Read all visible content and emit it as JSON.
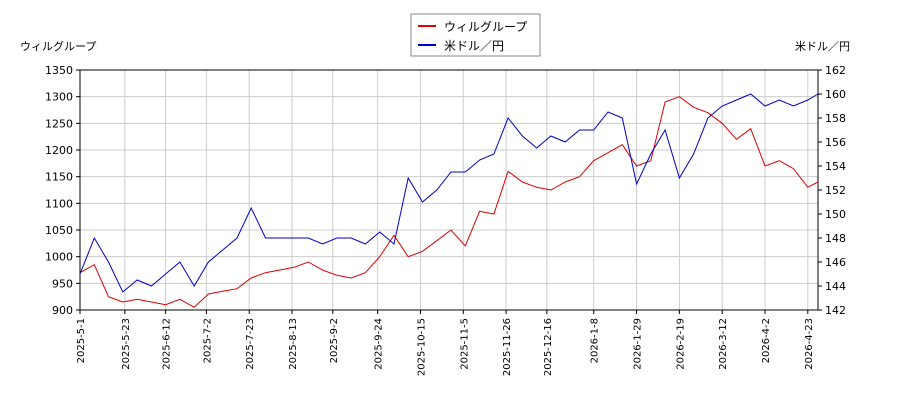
{
  "chart_data": {
    "type": "line",
    "ylabel": "ウィルグループ",
    "y2label": "米ドル／円",
    "x": [
      "2025-5-1",
      "2025-5-8",
      "2025-5-15",
      "2025-5-22",
      "2025-5-29",
      "2025-6-5",
      "2025-6-12",
      "2025-6-19",
      "2025-6-26",
      "2025-7-3",
      "2025-7-10",
      "2025-7-17",
      "2025-7-24",
      "2025-7-31",
      "2025-8-7",
      "2025-8-14",
      "2025-8-21",
      "2025-8-28",
      "2025-9-4",
      "2025-9-11",
      "2025-9-18",
      "2025-9-25",
      "2025-10-2",
      "2025-10-9",
      "2025-10-16",
      "2025-10-23",
      "2025-10-30",
      "2025-11-6",
      "2025-11-13",
      "2025-11-20",
      "2025-11-27",
      "2025-12-4",
      "2025-12-11",
      "2025-12-18",
      "2025-12-25",
      "2026-1-1",
      "2026-1-8",
      "2026-1-15",
      "2026-1-22",
      "2026-1-29",
      "2026-2-5",
      "2026-2-12",
      "2026-2-19",
      "2026-2-26",
      "2026-3-5",
      "2026-3-12",
      "2026-3-19",
      "2026-3-26",
      "2026-4-2",
      "2026-4-9",
      "2026-4-16",
      "2026-4-23",
      "2026-4-28"
    ],
    "series": [
      {
        "name": "ウィルグループ",
        "color": "#dd0000",
        "axis": "y",
        "values": [
          970,
          985,
          925,
          915,
          920,
          915,
          910,
          920,
          905,
          930,
          935,
          940,
          960,
          970,
          975,
          980,
          990,
          975,
          965,
          960,
          970,
          1000,
          1040,
          1000,
          1010,
          1030,
          1050,
          1020,
          1085,
          1080,
          1160,
          1140,
          1130,
          1125,
          1140,
          1150,
          1180,
          1195,
          1210,
          1170,
          1180,
          1290,
          1300,
          1280,
          1270,
          1250,
          1220,
          1240,
          1170,
          1180,
          1165,
          1130,
          1140
        ]
      },
      {
        "name": "米ドル／円",
        "color": "#0000cc",
        "axis": "y2",
        "values": [
          145,
          148,
          146,
          143.5,
          144.5,
          144,
          145,
          146,
          144,
          146,
          147,
          148,
          150.5,
          148,
          148,
          148,
          148,
          147.5,
          148,
          148,
          147.5,
          148.5,
          147.5,
          153,
          151,
          152,
          153.5,
          153.5,
          154.5,
          155,
          158,
          156.5,
          155.5,
          156.5,
          156,
          157,
          157,
          158.5,
          158,
          152.5,
          155,
          157,
          153,
          155,
          158,
          159,
          159.5,
          160,
          159,
          159.5,
          159,
          159.5,
          160
        ]
      }
    ],
    "xlim": [
      "2025-5-1",
      "2026-4-28"
    ],
    "xticks": [
      "2025-5-1",
      "2025-5-23",
      "2025-6-12",
      "2025-7-2",
      "2025-7-23",
      "2025-8-13",
      "2025-9-2",
      "2025-9-24",
      "2025-10-15",
      "2025-11-5",
      "2025-11-26",
      "2025-12-16",
      "2026-1-8",
      "2026-1-29",
      "2026-2-19",
      "2026-3-12",
      "2026-4-2",
      "2026-4-23"
    ],
    "ylim": [
      900,
      1350
    ],
    "yticks": [
      900,
      950,
      1000,
      1050,
      1100,
      1150,
      1200,
      1250,
      1300,
      1350
    ],
    "y2lim": [
      142,
      162
    ],
    "y2ticks": [
      142,
      144,
      146,
      148,
      150,
      152,
      154,
      156,
      158,
      160,
      162
    ],
    "grid": true
  }
}
